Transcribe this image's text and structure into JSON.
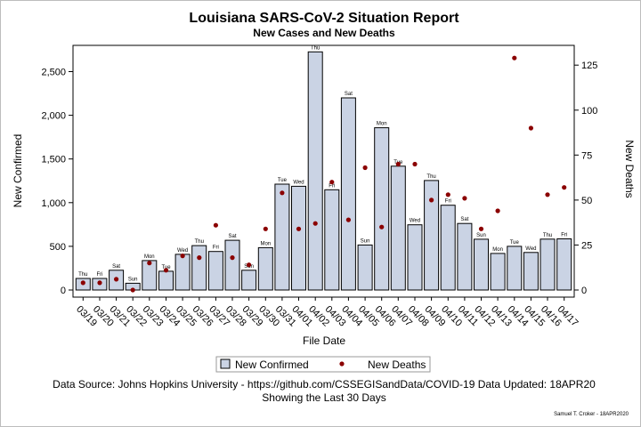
{
  "chart_data": {
    "type": "bar",
    "title": "Louisiana SARS-CoV-2 Situation Report",
    "subtitle": "New Cases and New Deaths",
    "xlabel": "File Date",
    "ylabel": "New Confirmed",
    "y2label": "New Deaths",
    "ylim": [
      0,
      2800
    ],
    "y2lim": [
      0,
      136
    ],
    "yticks": [
      0,
      500,
      1000,
      1500,
      2000,
      2500
    ],
    "ytick_labels": [
      "0",
      "500",
      "1,000",
      "1,500",
      "2,000",
      "2,500"
    ],
    "y2ticks": [
      0,
      25,
      50,
      75,
      100,
      125
    ],
    "y2tick_labels": [
      "0",
      "25",
      "50",
      "75",
      "100",
      "125"
    ],
    "categories": [
      "03/19",
      "03/20",
      "03/21",
      "03/22",
      "03/23",
      "03/24",
      "03/25",
      "03/26",
      "03/27",
      "03/28",
      "03/29",
      "03/30",
      "03/31",
      "04/01",
      "04/02",
      "04/03",
      "04/04",
      "04/05",
      "04/06",
      "04/07",
      "04/08",
      "04/09",
      "04/10",
      "04/11",
      "04/12",
      "04/13",
      "04/14",
      "04/15",
      "04/16",
      "04/17"
    ],
    "day_labels": [
      "Thu",
      "Fri",
      "Sat",
      "Sun",
      "Mon",
      "Tue",
      "Wed",
      "Thu",
      "Fri",
      "Sat",
      "Sun",
      "Mon",
      "Tue",
      "Wed",
      "Thu",
      "Fri",
      "Sat",
      "Sun",
      "Mon",
      "Tue",
      "Wed",
      "Thu",
      "Fri",
      "Sat",
      "Sun",
      "Mon",
      "Tue",
      "Wed",
      "Thu",
      "Fri"
    ],
    "series": [
      {
        "name": "New Confirmed",
        "type": "bar",
        "axis": "left",
        "values": [
          132,
          132,
          226,
          77,
          337,
          215,
          408,
          508,
          441,
          569,
          226,
          485,
          1212,
          1187,
          2726,
          1147,
          2199,
          515,
          1857,
          1417,
          746,
          1253,
          970,
          762,
          581,
          418,
          500,
          430,
          582,
          585
        ]
      },
      {
        "name": "New Deaths",
        "type": "scatter",
        "axis": "right",
        "values": [
          4,
          4,
          6,
          0,
          15,
          11,
          19,
          18,
          36,
          18,
          14,
          34,
          54,
          34,
          37,
          60,
          39,
          68,
          35,
          70,
          70,
          50,
          53,
          51,
          34,
          44,
          129,
          90,
          53,
          57
        ]
      }
    ],
    "legend": {
      "placement": "bottom",
      "entries": [
        "New Confirmed",
        "New Deaths"
      ]
    },
    "grid": false,
    "colors": {
      "bar_fill": "#cad3e4",
      "bar_stroke": "#000000",
      "marker": "#8b0000"
    }
  },
  "footer": {
    "source": "Data Source: Johns Hopkins University - https://github.com/CSSEGISandData/COVID-19 Data Updated: 18APR20",
    "note": "Showing the Last 30 Days",
    "signature": "Samuel T. Croker - 18APR2020"
  }
}
